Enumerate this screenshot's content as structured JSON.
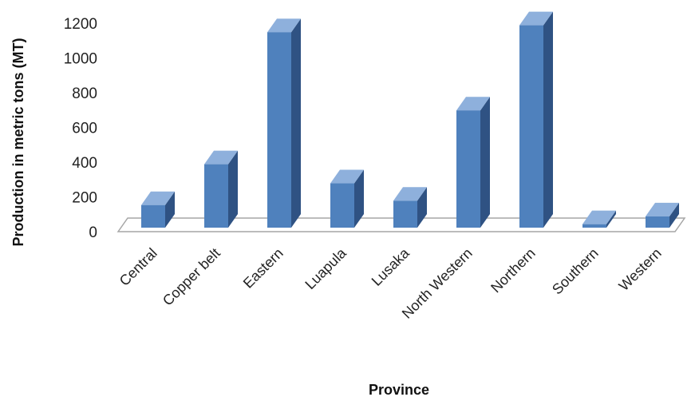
{
  "chart_data": {
    "type": "bar",
    "categories": [
      "Central",
      "Copper belt",
      "Eastern",
      "Luapula",
      "Lusaka",
      "North Western",
      "Northern",
      "Southern",
      "Western"
    ],
    "values": [
      130,
      365,
      1125,
      255,
      155,
      675,
      1165,
      20,
      65
    ],
    "title": "",
    "xlabel": "Province",
    "ylabel": "Production in metric tons (MT)",
    "ylim": [
      0,
      1200
    ],
    "yticks": [
      0,
      200,
      400,
      600,
      800,
      1000,
      1200
    ],
    "grid": false,
    "legend": "none",
    "colors": {
      "front": "#4f81bd",
      "side": "#2f5283",
      "top": "#8eb0dc",
      "floor": "#a6a6a6"
    }
  }
}
